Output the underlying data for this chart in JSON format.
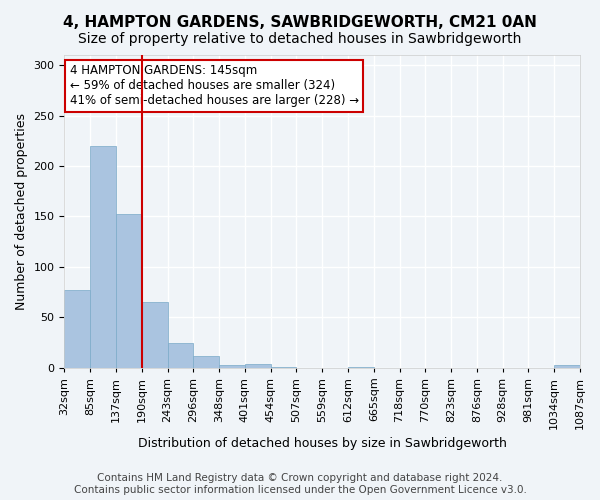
{
  "title1": "4, HAMPTON GARDENS, SAWBRIDGEWORTH, CM21 0AN",
  "title2": "Size of property relative to detached houses in Sawbridgeworth",
  "xlabel": "Distribution of detached houses by size in Sawbridgeworth",
  "ylabel": "Number of detached properties",
  "tick_labels": [
    "32sqm",
    "85sqm",
    "137sqm",
    "190sqm",
    "243sqm",
    "296sqm",
    "348sqm",
    "401sqm",
    "454sqm",
    "507sqm",
    "559sqm",
    "612sqm",
    "665sqm",
    "718sqm",
    "770sqm",
    "823sqm",
    "876sqm",
    "928sqm",
    "981sqm",
    "1034sqm",
    "1087sqm"
  ],
  "values": [
    77,
    220,
    152,
    65,
    24,
    12,
    3,
    4,
    1,
    0,
    0,
    1,
    0,
    0,
    0,
    0,
    0,
    0,
    0,
    3
  ],
  "bar_color": "#aac4e0",
  "bar_edge_color": "#7aaac8",
  "vline_x": 2.5,
  "vline_color": "#cc0000",
  "annotation_text": "4 HAMPTON GARDENS: 145sqm\n← 59% of detached houses are smaller (324)\n41% of semi-detached houses are larger (228) →",
  "annotation_box_color": "#ffffff",
  "annotation_box_edge": "#cc0000",
  "ylim": [
    0,
    310
  ],
  "yticks": [
    0,
    50,
    100,
    150,
    200,
    250,
    300
  ],
  "footer1": "Contains HM Land Registry data © Crown copyright and database right 2024.",
  "footer2": "Contains public sector information licensed under the Open Government Licence v3.0.",
  "background_color": "#f0f4f8",
  "grid_color": "#ffffff",
  "title_fontsize": 11,
  "subtitle_fontsize": 10,
  "axis_label_fontsize": 9,
  "tick_fontsize": 8,
  "annotation_fontsize": 8.5,
  "footer_fontsize": 7.5
}
